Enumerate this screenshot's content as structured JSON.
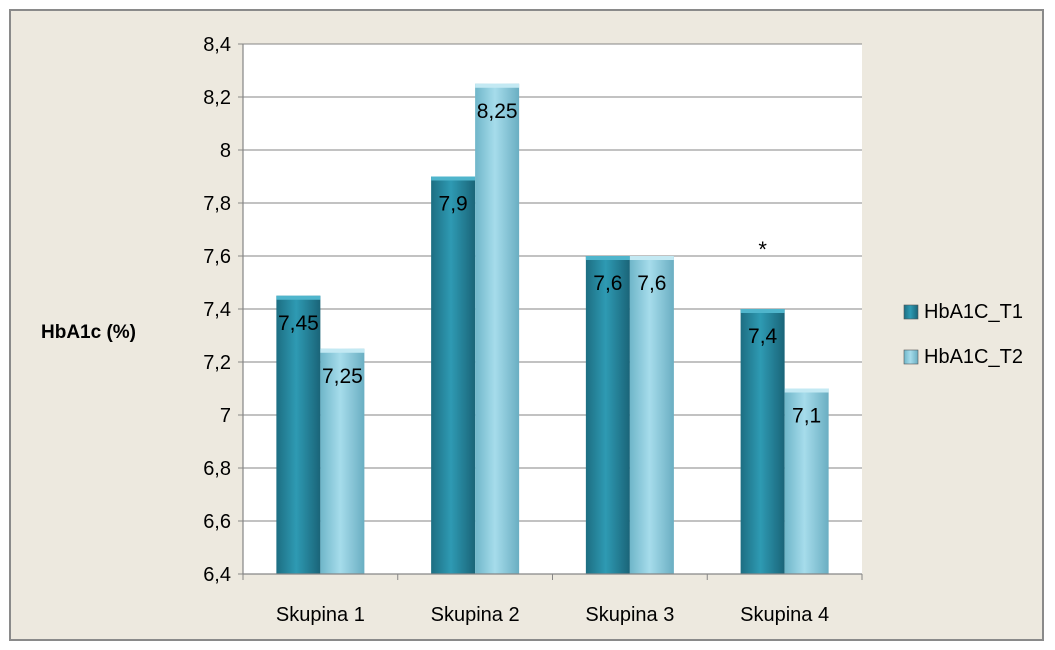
{
  "chart_data": {
    "type": "bar",
    "categories": [
      "Skupina 1",
      "Skupina 2",
      "Skupina 3",
      "Skupina 4"
    ],
    "series": [
      {
        "name": "HbA1C_T1",
        "values": [
          7.45,
          7.9,
          7.6,
          7.4
        ],
        "labels": [
          "7,45",
          "7,9",
          "7,6",
          "7,4"
        ]
      },
      {
        "name": "HbA1C_T2",
        "values": [
          7.25,
          8.25,
          7.6,
          7.1
        ],
        "labels": [
          "7,25",
          "8,25",
          "7,6",
          "7,1"
        ]
      }
    ],
    "ylabel": "HbA1c (%)",
    "ylim": [
      6.4,
      8.4
    ],
    "yticks": [
      6.4,
      6.6,
      6.8,
      7,
      7.2,
      7.4,
      7.6,
      7.8,
      8,
      8.2,
      8.4
    ],
    "ytick_labels": [
      "6,4",
      "6,6",
      "6,8",
      "7",
      "7,2",
      "7,4",
      "7,6",
      "7,8",
      "8",
      "8,2",
      "8,4"
    ],
    "grid": true,
    "legend_position": "right",
    "annotations": [
      {
        "text": "*",
        "category": "Skupina 4"
      }
    ],
    "colors": {
      "T1": "#2a8ea5",
      "T2": "#8ecfe0",
      "background": "#ede9df",
      "plot_area": "#ffffff"
    }
  }
}
